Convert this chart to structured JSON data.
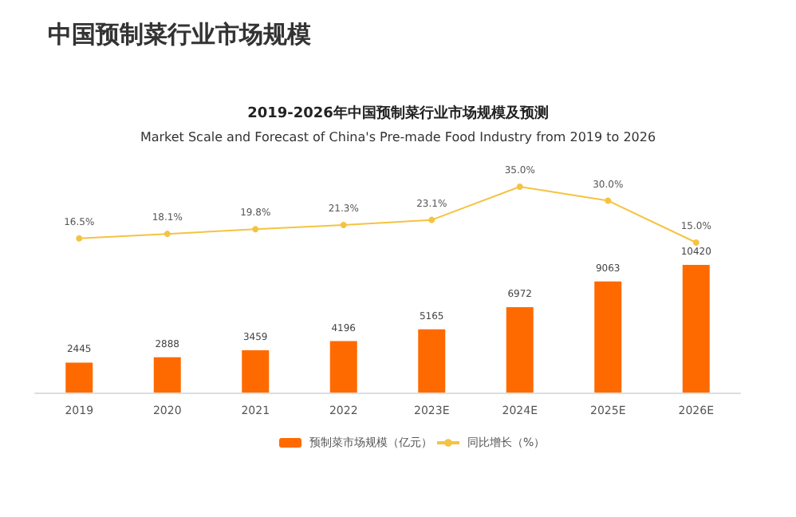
{
  "chart_data": [
    {
      "type": "bar",
      "annotations": [
        "中国预制菜行业市场规模"
      ],
      "categories": [
        "2019",
        "2020",
        "2021",
        "2022",
        "2023E",
        "2024E",
        "2025E",
        "2026E"
      ],
      "series": [
        {
          "name": "预制菜市场规模（亿元）",
          "color": "#ff6a00",
          "values": [
            2445,
            2888,
            3459,
            4196,
            5165,
            6972,
            9063,
            10420
          ]
        }
      ],
      "data_labels": true,
      "legend": "bottom",
      "grid": false,
      "tick_labels": "x"
    },
    {
      "type": "line",
      "title": "2019-2026年中国预制菜行业市场规模及预测",
      "subtitle": "Market Scale and Forecast of China's Pre-made Food Industry from 2019 to 2026",
      "categories": [
        null,
        null,
        null,
        null,
        null,
        null,
        null,
        null
      ],
      "series": [
        {
          "name": "同比增长（%）",
          "color": "#f5c342",
          "values": [
            16.5,
            18.1,
            19.8,
            21.3,
            23.1,
            35.0,
            30.0,
            15.0
          ],
          "value_labels": [
            "16.5%",
            "18.1%",
            "19.8%",
            "21.3%",
            "23.1%",
            "35.0%",
            "30.0%",
            "15.0%"
          ]
        }
      ],
      "legend": "bottom",
      "grid": false,
      "marker": "circle",
      "tick_labels": false
    }
  ]
}
